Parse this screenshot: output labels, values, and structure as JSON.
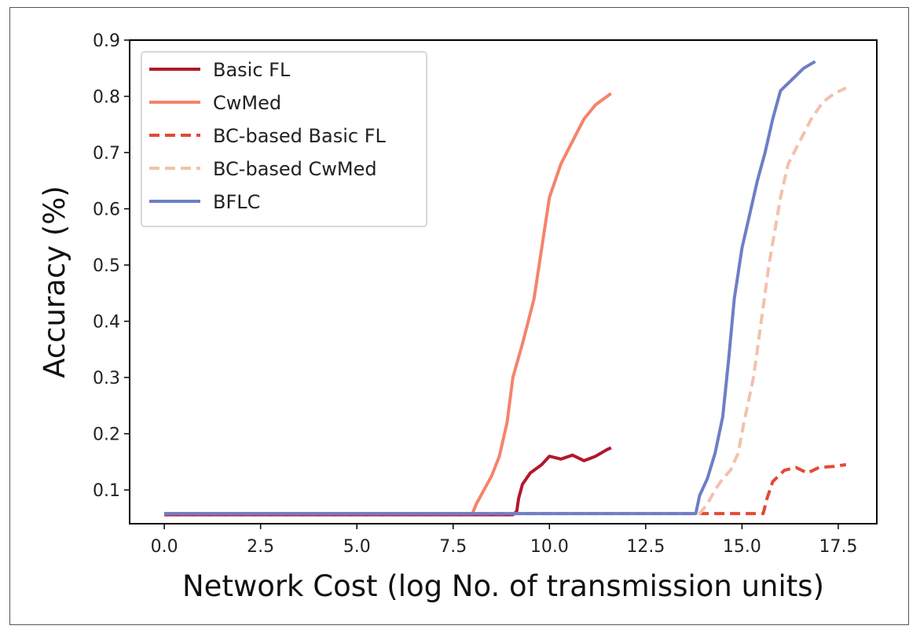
{
  "chart_data": {
    "type": "line",
    "title": "",
    "xlabel": "Network Cost (log No. of transmission units)",
    "ylabel": "Accuracy (%)",
    "xlim": [
      -0.9,
      18.5
    ],
    "ylim": [
      0.04,
      0.9
    ],
    "xticks": [
      0.0,
      2.5,
      5.0,
      7.5,
      10.0,
      12.5,
      15.0,
      17.5
    ],
    "xtick_labels": [
      "0.0",
      "2.5",
      "5.0",
      "7.5",
      "10.0",
      "12.5",
      "15.0",
      "17.5"
    ],
    "yticks": [
      0.1,
      0.2,
      0.3,
      0.4,
      0.5,
      0.6,
      0.7,
      0.8,
      0.9
    ],
    "ytick_labels": [
      "0.1",
      "0.2",
      "0.3",
      "0.4",
      "0.5",
      "0.6",
      "0.7",
      "0.8",
      "0.9"
    ],
    "grid": false,
    "legend_position": "top-left",
    "series": [
      {
        "name": "Basic FL",
        "color": "#b2182b",
        "dash": "solid",
        "x": [
          0.0,
          9.05,
          9.15,
          9.2,
          9.3,
          9.5,
          9.8,
          10.0,
          10.3,
          10.6,
          10.9,
          11.2,
          11.5,
          11.6
        ],
        "y": [
          0.056,
          0.056,
          0.062,
          0.085,
          0.11,
          0.13,
          0.145,
          0.16,
          0.155,
          0.162,
          0.152,
          0.16,
          0.172,
          0.175
        ]
      },
      {
        "name": "CwMed",
        "color": "#f4846b",
        "dash": "solid",
        "x": [
          0.0,
          8.0,
          8.1,
          8.3,
          8.5,
          8.7,
          8.9,
          9.05,
          9.3,
          9.6,
          9.8,
          10.0,
          10.3,
          10.6,
          10.9,
          11.2,
          11.6
        ],
        "y": [
          0.058,
          0.058,
          0.075,
          0.1,
          0.125,
          0.16,
          0.22,
          0.3,
          0.36,
          0.44,
          0.53,
          0.62,
          0.68,
          0.72,
          0.76,
          0.785,
          0.805
        ]
      },
      {
        "name": "BC-based Basic FL",
        "color": "#e34a33",
        "dash": "dashed",
        "x": [
          0.0,
          15.55,
          15.65,
          15.8,
          16.1,
          16.4,
          16.7,
          17.0,
          17.4,
          17.7
        ],
        "y": [
          0.058,
          0.058,
          0.085,
          0.115,
          0.135,
          0.14,
          0.13,
          0.14,
          0.142,
          0.145
        ]
      },
      {
        "name": "BC-based CwMed",
        "color": "#f4c0ad",
        "dash": "dashed",
        "x": [
          0.0,
          13.9,
          14.1,
          14.3,
          14.5,
          14.7,
          14.9,
          15.05,
          15.3,
          15.5,
          15.7,
          15.85,
          16.0,
          16.2,
          16.5,
          16.8,
          17.1,
          17.4,
          17.7
        ],
        "y": [
          0.058,
          0.058,
          0.075,
          0.1,
          0.12,
          0.135,
          0.165,
          0.22,
          0.3,
          0.4,
          0.5,
          0.56,
          0.62,
          0.68,
          0.72,
          0.76,
          0.79,
          0.805,
          0.815
        ]
      },
      {
        "name": "BFLC",
        "color": "#6e7ec7",
        "dash": "solid",
        "x": [
          0.0,
          13.8,
          13.9,
          14.1,
          14.3,
          14.5,
          14.65,
          14.8,
          15.0,
          15.2,
          15.4,
          15.6,
          15.8,
          16.0,
          16.3,
          16.6,
          16.9
        ],
        "y": [
          0.058,
          0.058,
          0.09,
          0.12,
          0.165,
          0.23,
          0.33,
          0.44,
          0.53,
          0.59,
          0.65,
          0.7,
          0.76,
          0.81,
          0.83,
          0.85,
          0.862
        ]
      }
    ]
  }
}
